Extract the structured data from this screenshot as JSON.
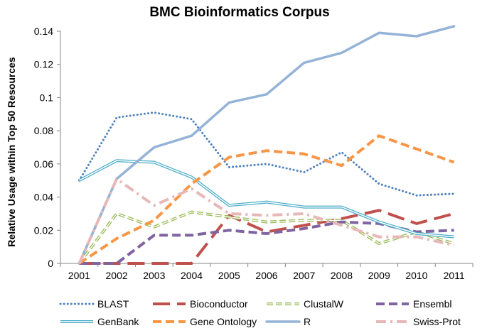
{
  "chart_data": {
    "type": "line",
    "title": "BMC Bioinformatics Corpus",
    "xlabel": "",
    "ylabel": "Relative Usage within Top 50 Resources",
    "x": [
      "2001",
      "2002",
      "2003",
      "2004",
      "2005",
      "2006",
      "2007",
      "2008",
      "2009",
      "2010",
      "2011"
    ],
    "ylim": [
      0,
      0.14
    ],
    "y_ticks": [
      "0",
      "0.02",
      "0.04",
      "0.06",
      "0.08",
      "0.1",
      "0.12",
      "0.14"
    ],
    "grid": false,
    "legend_position": "bottom",
    "series": [
      {
        "name": "BLAST",
        "color": "#4F81BD",
        "style": "dotted",
        "values": [
          0.05,
          0.088,
          0.091,
          0.087,
          0.058,
          0.06,
          0.055,
          0.067,
          0.048,
          0.041,
          0.042
        ]
      },
      {
        "name": "Bioconductor",
        "color": "#C0504D",
        "style": "longdash",
        "values": [
          0.0,
          0.0,
          0.0,
          0.0,
          0.029,
          0.019,
          0.023,
          0.027,
          0.032,
          0.024,
          0.03
        ]
      },
      {
        "name": "ClustalW",
        "color": "#9BBB59",
        "style": "double-dash",
        "values": [
          0.0,
          0.03,
          0.022,
          0.031,
          0.028,
          0.025,
          0.026,
          0.026,
          0.012,
          0.019,
          0.012
        ]
      },
      {
        "name": "Ensembl",
        "color": "#8064A2",
        "style": "dash",
        "values": [
          0.0,
          0.0,
          0.017,
          0.017,
          0.02,
          0.018,
          0.021,
          0.025,
          0.024,
          0.019,
          0.02
        ]
      },
      {
        "name": "GenBank",
        "color": "#4BACC6",
        "style": "double",
        "values": [
          0.05,
          0.062,
          0.061,
          0.052,
          0.035,
          0.037,
          0.034,
          0.034,
          0.025,
          0.018,
          0.016
        ]
      },
      {
        "name": "Gene Ontology",
        "color": "#F79646",
        "style": "dash",
        "values": [
          0.0,
          0.015,
          0.026,
          0.048,
          0.064,
          0.068,
          0.066,
          0.059,
          0.077,
          0.069,
          0.061
        ]
      },
      {
        "name": "R",
        "color": "#95B3D7",
        "style": "solid",
        "values": [
          0.0,
          0.051,
          0.07,
          0.077,
          0.097,
          0.102,
          0.121,
          0.127,
          0.139,
          0.137,
          0.143
        ]
      },
      {
        "name": "Swiss-Prot",
        "color": "#E6B9B8",
        "style": "dashdot",
        "values": [
          0.0,
          0.051,
          0.035,
          0.045,
          0.03,
          0.029,
          0.03,
          0.023,
          0.016,
          0.016,
          0.011
        ]
      }
    ]
  }
}
